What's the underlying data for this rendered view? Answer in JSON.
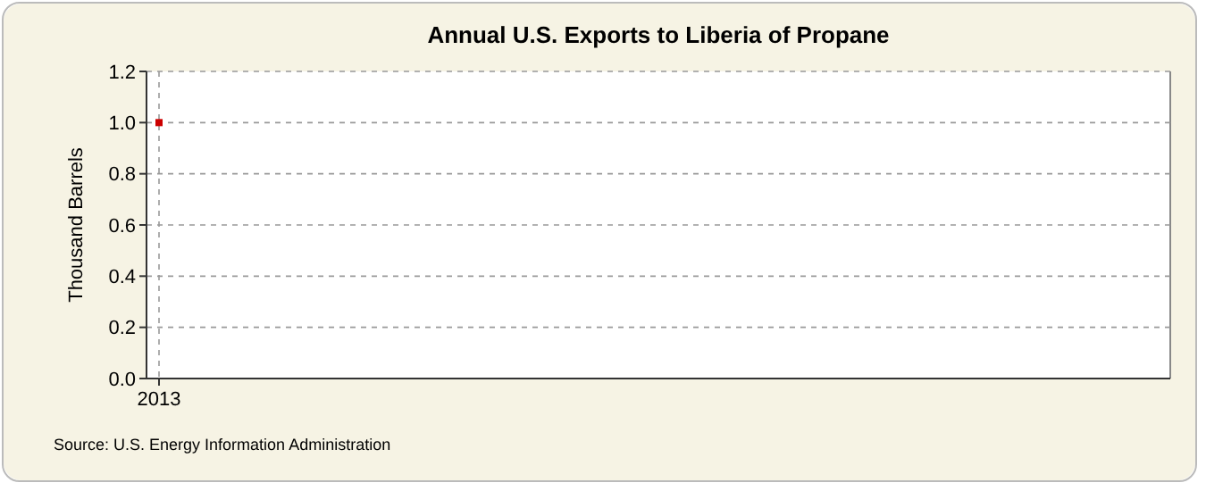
{
  "chart_data": {
    "type": "line",
    "title": "Annual U.S. Exports to Liberia of Propane",
    "ylabel": "Thousand Barrels",
    "categories": [
      "2013"
    ],
    "series": [
      {
        "color": "#cc0000",
        "values": [
          1.0
        ]
      }
    ],
    "ylim": [
      0,
      1.2
    ],
    "yticks": [
      {
        "value": 0,
        "label": "0.0"
      },
      0.2,
      0.4,
      0.6,
      0.8,
      {
        "value": 1,
        "label": "1.0"
      },
      1.2
    ],
    "grid": true,
    "marker": "square",
    "annotations": [
      "Source: U.S. Energy Information Administration"
    ]
  }
}
